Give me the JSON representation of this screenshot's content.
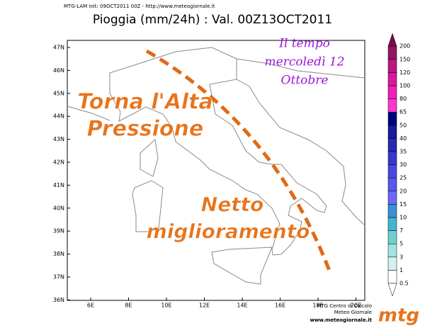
{
  "header": {
    "init": "MTG-LAM init: 09OCT2011 00Z  -  http://www.meteogiornale.it",
    "title": "Pioggia (mm/24h) : Val. 00Z13OCT2011"
  },
  "annotations": {
    "date": [
      "Il tempo",
      "mercoledì 12",
      "Ottobre"
    ],
    "left": [
      "Torna l'Alta",
      "Pressione"
    ],
    "right": [
      "Netto",
      "miglioramento"
    ]
  },
  "axes": {
    "lat": [
      "47N",
      "46N",
      "45N",
      "44N",
      "43N",
      "42N",
      "41N",
      "40N",
      "39N",
      "38N",
      "37N",
      "36N"
    ],
    "lon": [
      "6E",
      "8E",
      "10E",
      "12E",
      "14E",
      "16E",
      "18E",
      "20E"
    ]
  },
  "colorbar": {
    "levels": [
      0.5,
      1,
      3,
      5,
      7,
      10,
      15,
      20,
      25,
      30,
      35,
      40,
      50,
      65,
      80,
      100,
      120,
      150,
      200
    ],
    "colors": [
      "#ffffff",
      "#d2f2f2",
      "#9fe3e3",
      "#6fcfd0",
      "#45b4cc",
      "#3a8fd8",
      "#6a6af6",
      "#5858ec",
      "#4848e0",
      "#3838cc",
      "#2828b0",
      "#18189a",
      "#000080",
      "#ff38cc",
      "#f020b8",
      "#d8189c",
      "#b81880",
      "#961464",
      "#7a0a4a"
    ]
  },
  "footer": {
    "lines": [
      "MTG Centro di Calcolo",
      "Meteo Giornale",
      "www.meteogiornale.it"
    ],
    "logo": "mtg"
  }
}
